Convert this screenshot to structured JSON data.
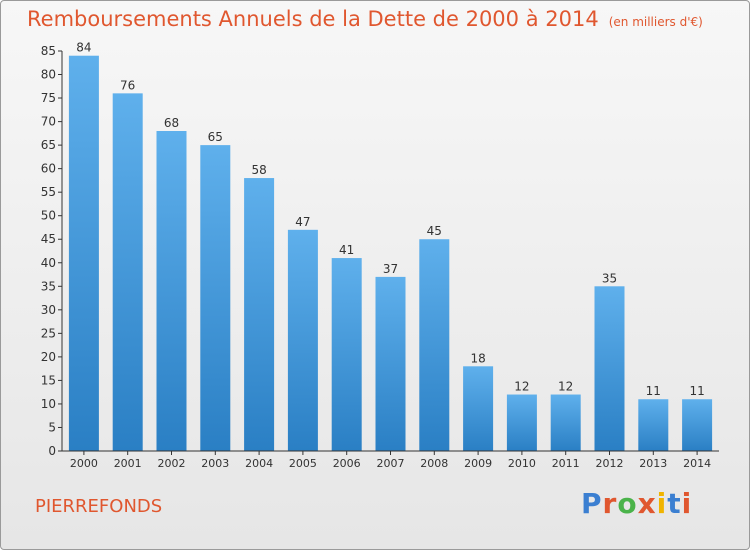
{
  "title": "Remboursements Annuels de la Dette de 2000 à 2014",
  "unit": "(en milliers d'€)",
  "commune": "PIERREFONDS",
  "brand": {
    "text": "Proxiti",
    "colors": [
      "#3b7fd1",
      "#e0572f",
      "#4ab34a",
      "#e0572f",
      "#f0b400",
      "#3b7fd1",
      "#e0572f"
    ]
  },
  "colors": {
    "bar_top": "#5fb0ec",
    "bar_bottom": "#2a7fc4",
    "title": "#e0572f"
  },
  "chart_data": {
    "type": "bar",
    "title": "Remboursements Annuels de la Dette de 2000 à 2014",
    "xlabel": "",
    "ylabel": "",
    "categories": [
      "2000",
      "2001",
      "2002",
      "2003",
      "2004",
      "2005",
      "2006",
      "2007",
      "2008",
      "2009",
      "2010",
      "2011",
      "2012",
      "2013",
      "2014"
    ],
    "values": [
      84,
      76,
      68,
      65,
      58,
      47,
      41,
      37,
      45,
      18,
      12,
      12,
      35,
      11,
      11
    ],
    "ylim": [
      0,
      85
    ],
    "yticks": [
      0,
      5,
      10,
      15,
      20,
      25,
      30,
      35,
      40,
      45,
      50,
      55,
      60,
      65,
      70,
      75,
      80,
      85
    ],
    "grid": false,
    "legend": "none"
  }
}
